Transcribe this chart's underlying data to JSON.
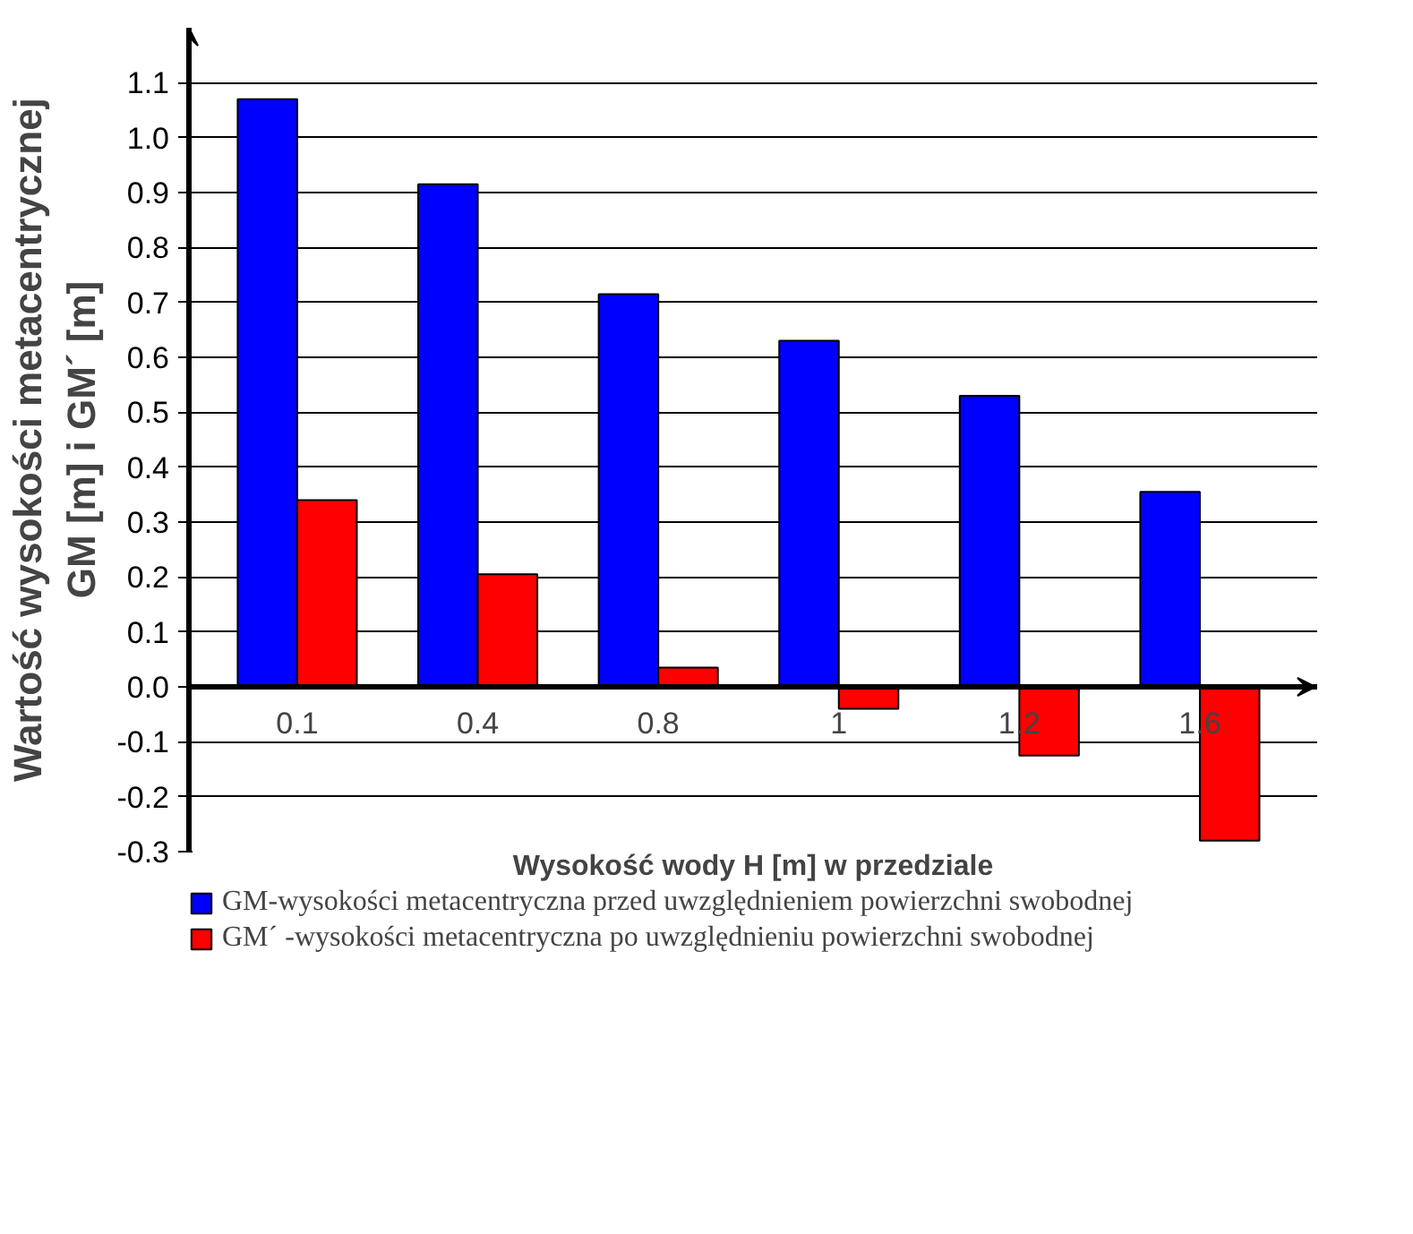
{
  "chart_data": {
    "type": "bar",
    "xlabel": "Wysokość wody H [m] w przedziale",
    "ylabel": "Wartość wysokości metacentrycznej\nGM [m] i GM´ [m]",
    "categories": [
      "0.1",
      "0.4",
      "0.8",
      "1",
      "1.2",
      "1.6"
    ],
    "series": [
      {
        "name": "GM-wysokości metacentryczna przed uwzględnieniem powierzchni swobodnej",
        "color": "#0000ff",
        "values": [
          1.07,
          0.915,
          0.715,
          0.63,
          0.53,
          0.355
        ]
      },
      {
        "name": "GM´ -wysokości metacentryczna po uwzględnieniu powierzchni swobodnej",
        "color": "#ff0000",
        "values": [
          0.34,
          0.205,
          0.035,
          -0.04,
          -0.125,
          -0.28
        ]
      }
    ],
    "ylim": [
      -0.3,
      1.2
    ],
    "yticks": [
      {
        "value": -0.3,
        "label": "-0.3"
      },
      {
        "value": -0.2,
        "label": "-0.2"
      },
      {
        "value": -0.1,
        "label": "-0.1"
      },
      {
        "value": 0,
        "label": "0.0"
      },
      {
        "value": 0.1,
        "label": "0.1"
      },
      {
        "value": 0.2,
        "label": "0.2"
      },
      {
        "value": 0.3,
        "label": "0.3"
      },
      {
        "value": 0.4,
        "label": "0.4"
      },
      {
        "value": 0.5,
        "label": "0.5"
      },
      {
        "value": 0.6,
        "label": "0.6"
      },
      {
        "value": 0.7,
        "label": "0.7"
      },
      {
        "value": 0.8,
        "label": "0.8"
      },
      {
        "value": 0.9,
        "label": "0.9"
      },
      {
        "value": 1.0,
        "label": "1.0"
      },
      {
        "value": 1.1,
        "label": "1.1"
      }
    ],
    "grid": "y",
    "legend": "bottom"
  }
}
